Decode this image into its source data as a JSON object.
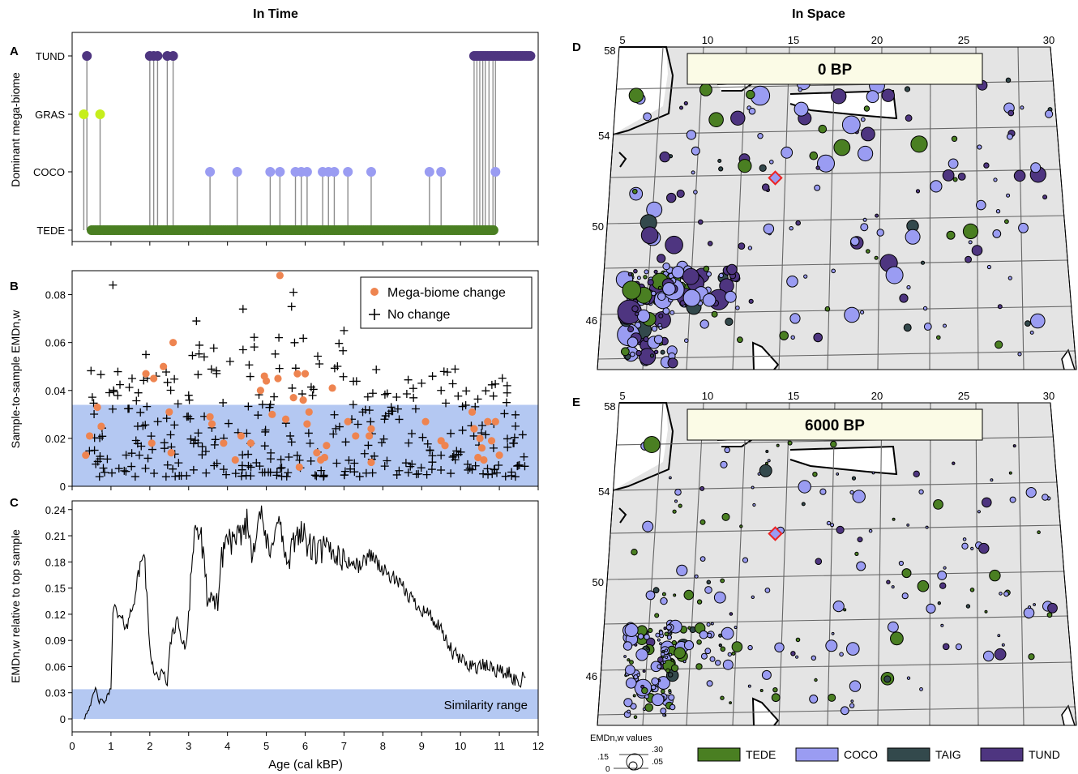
{
  "headings": {
    "time": "In Time",
    "space": "In Space"
  },
  "panel_letters": {
    "a": "A",
    "b": "B",
    "c": "C",
    "d": "D",
    "e": "E"
  },
  "colors": {
    "TEDE": "#4a7f22",
    "COCO": "#9a9cf2",
    "TAIG": "#33494c",
    "TUND": "#4e3580",
    "GRAS": "#c6ee1c",
    "change": "#ee8450",
    "band": "#b4c8f2",
    "stem": "#8c8c8c",
    "land": "#e4e4e4"
  },
  "chart_data": [
    {
      "id": "A",
      "type": "scatter",
      "ylabel": "Dominant mega-biome",
      "categories": [
        "TEDE",
        "COCO",
        "GRAS",
        "TUND"
      ],
      "xlim": [
        0,
        12
      ],
      "points": [
        {
          "x": 0.3,
          "y": "GRAS"
        },
        {
          "x": 0.38,
          "y": "TUND"
        },
        {
          "x": 0.72,
          "y": "GRAS"
        },
        {
          "x": 2.0,
          "y": "TUND"
        },
        {
          "x": 2.1,
          "y": "TUND"
        },
        {
          "x": 2.2,
          "y": "TUND"
        },
        {
          "x": 2.45,
          "y": "TUND"
        },
        {
          "x": 2.6,
          "y": "TUND"
        },
        {
          "x": 3.55,
          "y": "COCO"
        },
        {
          "x": 4.25,
          "y": "COCO"
        },
        {
          "x": 5.1,
          "y": "COCO"
        },
        {
          "x": 5.35,
          "y": "COCO"
        },
        {
          "x": 5.75,
          "y": "COCO"
        },
        {
          "x": 5.9,
          "y": "COCO"
        },
        {
          "x": 6.05,
          "y": "COCO"
        },
        {
          "x": 6.45,
          "y": "COCO"
        },
        {
          "x": 6.6,
          "y": "COCO"
        },
        {
          "x": 6.75,
          "y": "COCO"
        },
        {
          "x": 7.1,
          "y": "COCO"
        },
        {
          "x": 7.7,
          "y": "COCO"
        },
        {
          "x": 9.2,
          "y": "COCO"
        },
        {
          "x": 9.5,
          "y": "COCO"
        },
        {
          "x": 10.9,
          "y": "COCO"
        }
      ],
      "tund_run": [
        10.35,
        11.85
      ],
      "tede_run": [
        0.5,
        10.9
      ]
    },
    {
      "id": "B",
      "type": "scatter",
      "ylabel": "Sample-to-sample EMDn,w",
      "ylim": [
        0,
        0.09
      ],
      "yticks": [
        0,
        0.02,
        0.04,
        0.06,
        0.08
      ],
      "yticklabels": [
        "0",
        "0.02",
        "0.04",
        "0.06",
        "0.08"
      ],
      "band": [
        0,
        0.034
      ],
      "legend": {
        "position": "top-right",
        "change": "Mega-biome change",
        "nochange": "No change"
      },
      "change_points": [
        [
          0.35,
          0.013
        ],
        [
          0.45,
          0.021
        ],
        [
          0.65,
          0.033
        ],
        [
          0.75,
          0.025
        ],
        [
          1.9,
          0.047
        ],
        [
          2.1,
          0.045
        ],
        [
          2.35,
          0.05
        ],
        [
          2.6,
          0.06
        ],
        [
          2.5,
          0.031
        ],
        [
          2.05,
          0.018
        ],
        [
          2.55,
          0.014
        ],
        [
          3.55,
          0.029
        ],
        [
          3.6,
          0.026
        ],
        [
          3.9,
          0.018
        ],
        [
          4.2,
          0.011
        ],
        [
          4.35,
          0.021
        ],
        [
          4.6,
          0.018
        ],
        [
          4.85,
          0.04
        ],
        [
          4.95,
          0.046
        ],
        [
          5.0,
          0.044
        ],
        [
          5.3,
          0.045
        ],
        [
          5.35,
          0.088
        ],
        [
          5.15,
          0.03
        ],
        [
          5.5,
          0.028
        ],
        [
          5.7,
          0.037
        ],
        [
          5.8,
          0.047
        ],
        [
          5.95,
          0.036
        ],
        [
          6.0,
          0.047
        ],
        [
          6.05,
          0.026
        ],
        [
          6.1,
          0.031
        ],
        [
          5.85,
          0.008
        ],
        [
          6.3,
          0.014
        ],
        [
          6.4,
          0.011
        ],
        [
          6.5,
          0.012
        ],
        [
          6.55,
          0.017
        ],
        [
          6.7,
          0.041
        ],
        [
          7.1,
          0.027
        ],
        [
          7.3,
          0.021
        ],
        [
          7.65,
          0.021
        ],
        [
          7.7,
          0.01
        ],
        [
          7.7,
          0.024
        ],
        [
          9.1,
          0.027
        ],
        [
          9.5,
          0.019
        ],
        [
          9.6,
          0.017
        ],
        [
          10.3,
          0.031
        ],
        [
          10.35,
          0.024
        ],
        [
          10.45,
          0.012
        ],
        [
          10.5,
          0.02
        ],
        [
          10.6,
          0.011
        ],
        [
          10.7,
          0.027
        ],
        [
          10.8,
          0.019
        ],
        [
          10.9,
          0.027
        ],
        [
          11.0,
          0.013
        ],
        [
          10.55,
          0.016
        ]
      ],
      "nochange_seed": 7,
      "nochange_extra": [
        [
          1.05,
          0.084
        ],
        [
          5.7,
          0.081
        ],
        [
          5.65,
          0.075
        ],
        [
          4.4,
          0.074
        ],
        [
          3.2,
          0.069
        ],
        [
          7.0,
          0.065
        ],
        [
          1.9,
          0.055
        ],
        [
          3.4,
          0.054
        ],
        [
          4.4,
          0.057
        ],
        [
          3.0,
          0.038
        ],
        [
          9.5,
          0.04
        ],
        [
          11.2,
          0.042
        ],
        [
          11.2,
          0.039
        ],
        [
          9.0,
          0.043
        ]
      ]
    },
    {
      "id": "C",
      "type": "line",
      "xlabel": "Age (cal kBP)",
      "ylabel": "EMDn,w relative to top sample",
      "xlim": [
        0,
        12
      ],
      "ylim": [
        0,
        0.25
      ],
      "xticks": [
        0,
        1,
        2,
        3,
        4,
        5,
        6,
        7,
        8,
        9,
        10,
        11,
        12
      ],
      "xticklabels": [
        "0",
        "1",
        "2",
        "3",
        "4",
        "5",
        "6",
        "7",
        "8",
        "9",
        "10",
        "11",
        "12"
      ],
      "yticks": [
        0,
        0.03,
        0.06,
        0.09,
        0.12,
        0.15,
        0.18,
        0.21,
        0.24
      ],
      "yticklabels": [
        "0",
        "0.03",
        "0.06",
        "0.09",
        "0.12",
        "0.15",
        "0.18",
        "0.21",
        "0.24"
      ],
      "band": [
        0,
        0.034
      ],
      "band_label": "Similarity range",
      "anchors": [
        [
          0.3,
          0.0
        ],
        [
          0.5,
          0.02
        ],
        [
          0.6,
          0.035
        ],
        [
          0.7,
          0.02
        ],
        [
          0.85,
          0.02
        ],
        [
          1.0,
          0.035
        ],
        [
          1.05,
          0.13
        ],
        [
          1.15,
          0.12
        ],
        [
          1.3,
          0.11
        ],
        [
          1.45,
          0.11
        ],
        [
          1.6,
          0.14
        ],
        [
          1.8,
          0.185
        ],
        [
          1.85,
          0.195
        ],
        [
          2.0,
          0.08
        ],
        [
          2.15,
          0.05
        ],
        [
          2.3,
          0.05
        ],
        [
          2.45,
          0.045
        ],
        [
          2.5,
          0.07
        ],
        [
          2.6,
          0.105
        ],
        [
          2.75,
          0.11
        ],
        [
          2.85,
          0.08
        ],
        [
          2.95,
          0.09
        ],
        [
          3.05,
          0.16
        ],
        [
          3.15,
          0.215
        ],
        [
          3.3,
          0.215
        ],
        [
          3.45,
          0.15
        ],
        [
          3.6,
          0.125
        ],
        [
          3.75,
          0.14
        ],
        [
          3.9,
          0.2
        ],
        [
          4.05,
          0.21
        ],
        [
          4.2,
          0.195
        ],
        [
          4.35,
          0.215
        ],
        [
          4.5,
          0.225
        ],
        [
          4.65,
          0.19
        ],
        [
          4.8,
          0.24
        ],
        [
          4.95,
          0.215
        ],
        [
          5.1,
          0.18
        ],
        [
          5.25,
          0.235
        ],
        [
          5.4,
          0.21
        ],
        [
          5.55,
          0.17
        ],
        [
          5.7,
          0.2
        ],
        [
          5.85,
          0.22
        ],
        [
          6.05,
          0.2
        ],
        [
          6.3,
          0.19
        ],
        [
          6.5,
          0.195
        ],
        [
          6.8,
          0.19
        ],
        [
          7.1,
          0.18
        ],
        [
          7.4,
          0.175
        ],
        [
          7.7,
          0.19
        ],
        [
          8.0,
          0.17
        ],
        [
          8.3,
          0.16
        ],
        [
          8.6,
          0.145
        ],
        [
          8.9,
          0.13
        ],
        [
          9.2,
          0.12
        ],
        [
          9.5,
          0.1
        ],
        [
          9.8,
          0.075
        ],
        [
          10.1,
          0.065
        ],
        [
          10.4,
          0.06
        ],
        [
          10.7,
          0.06
        ],
        [
          11.0,
          0.055
        ],
        [
          11.3,
          0.05
        ],
        [
          11.5,
          0.04
        ],
        [
          11.7,
          0.058
        ]
      ]
    },
    {
      "id": "D",
      "type": "scatter",
      "title": "0 BP",
      "lon_ticks": [
        "5",
        "10",
        "15",
        "20",
        "25",
        "30"
      ],
      "lat_ticks": [
        "58",
        "54",
        "50",
        "46"
      ],
      "seed": 101,
      "n": 300,
      "mix": {
        "TEDE": 0.14,
        "COCO": 0.42,
        "TAIG": 0.1,
        "TUND": 0.34
      },
      "size_scale": 1.0
    },
    {
      "id": "E",
      "type": "scatter",
      "title": "6000 BP",
      "lon_ticks": [
        "5",
        "10",
        "15",
        "20",
        "25",
        "30"
      ],
      "lat_ticks": [
        "58",
        "54",
        "50",
        "46"
      ],
      "seed": 303,
      "n": 300,
      "mix": {
        "TEDE": 0.28,
        "COCO": 0.55,
        "TAIG": 0.07,
        "TUND": 0.1
      },
      "size_scale": 0.72
    }
  ],
  "size_legend": {
    "title": "EMDn,w values",
    "labels": [
      ".15",
      ".30",
      "0",
      ".05"
    ]
  },
  "map_legend": [
    {
      "key": "TEDE",
      "label": "TEDE"
    },
    {
      "key": "COCO",
      "label": "COCO"
    },
    {
      "key": "TAIG",
      "label": "TAIG"
    },
    {
      "key": "TUND",
      "label": "TUND"
    }
  ]
}
